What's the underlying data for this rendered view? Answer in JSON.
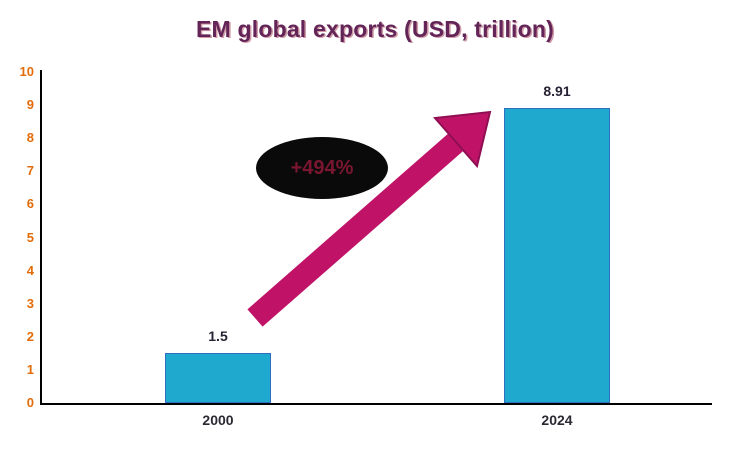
{
  "chart_data": {
    "type": "bar",
    "title": "EM global exports (USD, trillion)",
    "categories": [
      "2000",
      "2024"
    ],
    "values": [
      1.5,
      8.91
    ],
    "value_labels": [
      "1.5",
      "8.91"
    ],
    "ylim": [
      0,
      10
    ],
    "y_tick_step": 1,
    "y_tick_labels": [
      "0",
      "1",
      "2",
      "3",
      "4",
      "5",
      "6",
      "7",
      "8",
      "9",
      "10"
    ],
    "grid": false,
    "legend": "none",
    "annotation": "+494%",
    "colors": {
      "bar_fill": "#1fa9cf",
      "bar_border": "#2f6fc1",
      "arrow": "#c01368",
      "arrow_edge": "#8f0f52",
      "title": "#632457",
      "y_tick_label": "#e36c0a",
      "value_label": "#262233",
      "category_label": "#2b2a33",
      "axis": "#000000",
      "annotation_bg": "#0a0a0a",
      "annotation_text": "#7b1630"
    }
  }
}
